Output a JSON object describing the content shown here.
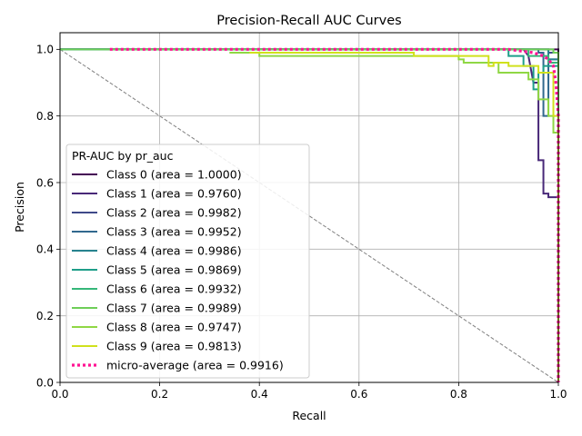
{
  "chart_data": {
    "type": "line",
    "title": "Precision-Recall AUC Curves",
    "xlabel": "Recall",
    "ylabel": "Precision",
    "xlim": [
      0.0,
      1.0
    ],
    "ylim": [
      0.0,
      1.05
    ],
    "xticks": [
      0.0,
      0.2,
      0.4,
      0.6,
      0.8,
      1.0
    ],
    "yticks": [
      0.0,
      0.2,
      0.4,
      0.6,
      0.8,
      1.0
    ],
    "grid": true,
    "legend": {
      "title": "PR-AUC by pr_auc",
      "placement": "lower-left"
    },
    "reference_line": {
      "x": [
        0.0,
        1.0
      ],
      "y": [
        1.0,
        0.0
      ],
      "color": "#808080",
      "style": "dashed"
    },
    "series": [
      {
        "name": "Class 0 (area = 1.0000)",
        "color": "#440154",
        "style": "solid",
        "x": [
          0.0,
          1.0,
          1.0
        ],
        "y": [
          1.0,
          1.0,
          0.0
        ]
      },
      {
        "name": "Class 1 (area = 0.9760)",
        "color": "#482878",
        "style": "solid",
        "x": [
          0.0,
          0.93,
          0.94,
          0.95,
          0.96,
          0.96,
          0.97,
          0.97,
          0.98,
          0.98,
          1.0,
          1.0
        ],
        "y": [
          1.0,
          1.0,
          0.98,
          0.9,
          0.9,
          0.667,
          0.667,
          0.567,
          0.567,
          0.556,
          0.556,
          0.0
        ]
      },
      {
        "name": "Class 2 (area = 0.9982)",
        "color": "#3e4989",
        "style": "solid",
        "x": [
          0.0,
          0.98,
          0.98,
          1.0,
          1.0
        ],
        "y": [
          1.0,
          1.0,
          0.99,
          0.99,
          0.0
        ]
      },
      {
        "name": "Class 3 (area = 0.9952)",
        "color": "#31688e",
        "style": "solid",
        "x": [
          0.0,
          0.96,
          0.96,
          0.97,
          0.97,
          0.98,
          0.98,
          1.0,
          1.0
        ],
        "y": [
          1.0,
          1.0,
          0.99,
          0.99,
          0.8,
          0.8,
          0.97,
          0.97,
          0.0
        ]
      },
      {
        "name": "Class 4 (area = 0.9986)",
        "color": "#26828e",
        "style": "solid",
        "x": [
          0.0,
          0.98,
          0.98,
          1.0,
          1.0
        ],
        "y": [
          1.0,
          1.0,
          0.97,
          0.97,
          0.0
        ]
      },
      {
        "name": "Class 5 (area = 0.9869)",
        "color": "#1f9e89",
        "style": "solid",
        "x": [
          0.0,
          0.9,
          0.9,
          0.93,
          0.93,
          0.95,
          0.95,
          0.96,
          0.96,
          0.97,
          0.97,
          1.0,
          1.0
        ],
        "y": [
          1.0,
          1.0,
          0.98,
          0.98,
          0.95,
          0.95,
          0.88,
          0.88,
          0.93,
          0.93,
          0.95,
          0.95,
          0.0
        ]
      },
      {
        "name": "Class 6 (area = 0.9932)",
        "color": "#35b779",
        "style": "solid",
        "x": [
          0.08,
          0.94,
          0.94,
          0.98,
          0.98,
          1.0,
          1.0
        ],
        "y": [
          1.0,
          1.0,
          0.98,
          0.98,
          0.96,
          0.96,
          0.0
        ]
      },
      {
        "name": "Class 7 (area = 0.9989)",
        "color": "#6ece58",
        "style": "solid",
        "x": [
          0.0,
          0.99,
          0.99,
          1.0,
          1.0
        ],
        "y": [
          1.0,
          1.0,
          0.99,
          0.99,
          0.0
        ]
      },
      {
        "name": "Class 8 (area = 0.9747)",
        "color": "#8fd744",
        "style": "solid",
        "x": [
          0.34,
          0.34,
          0.4,
          0.4,
          0.49,
          0.49,
          0.8,
          0.8,
          0.81,
          0.81,
          0.88,
          0.88,
          0.94,
          0.94,
          0.96,
          0.96,
          0.98,
          0.98,
          0.99,
          0.99,
          1.0,
          1.0
        ],
        "y": [
          0.99,
          0.99,
          0.99,
          0.98,
          0.98,
          0.98,
          0.98,
          0.97,
          0.97,
          0.96,
          0.96,
          0.93,
          0.93,
          0.91,
          0.91,
          0.85,
          0.85,
          0.8,
          0.8,
          0.75,
          0.75,
          0.0
        ]
      },
      {
        "name": "Class 9 (area = 0.9813)",
        "color": "#d0e11c",
        "style": "solid",
        "x": [
          0.38,
          0.71,
          0.71,
          0.86,
          0.86,
          0.87,
          0.87,
          0.9,
          0.9,
          0.96,
          0.96,
          0.99,
          0.99,
          1.0,
          1.0
        ],
        "y": [
          0.99,
          0.99,
          0.98,
          0.98,
          0.95,
          0.95,
          0.96,
          0.96,
          0.95,
          0.95,
          0.93,
          0.93,
          0.8,
          0.8,
          0.0
        ]
      },
      {
        "name": "micro-average (area = 0.9916)",
        "color": "#ff1493",
        "style": "dotted",
        "x": [
          0.1,
          0.9,
          0.95,
          0.97,
          0.98,
          0.99,
          0.995,
          1.0,
          1.0
        ],
        "y": [
          1.0,
          1.0,
          0.99,
          0.98,
          0.97,
          0.95,
          0.9,
          0.8,
          0.0
        ]
      }
    ]
  }
}
